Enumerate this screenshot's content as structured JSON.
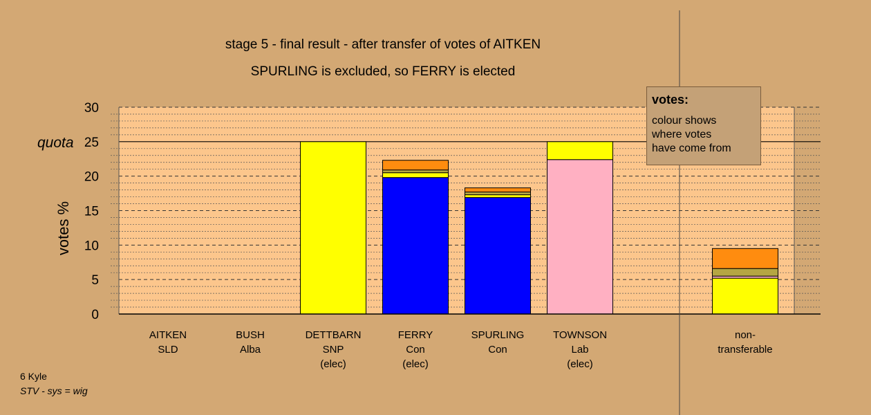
{
  "header": {
    "title_line1": "stage 5 - final result - after transfer of votes of AITKEN",
    "title_line2": "SPURLING is excluded, so FERRY is elected"
  },
  "legend": {
    "title": "votes:",
    "lines": [
      "colour shows",
      "where votes",
      "have come from"
    ]
  },
  "footer": {
    "ward": "6 Kyle",
    "system": "STV - sys = wig"
  },
  "colors": {
    "background": "#d3a874",
    "plot_area": "#fcc68c",
    "snp": "#ffff00",
    "con": "#0000ff",
    "lab": "#ffb0c2",
    "sld": "#ff8c0f",
    "alba": "#b5a642"
  },
  "chart_data": {
    "type": "bar",
    "stacked": true,
    "title": "stage 5 - final result - after transfer of votes of AITKEN",
    "subtitle": "SPURLING is excluded, so FERRY is elected",
    "ylabel": "votes %",
    "ylim": [
      0,
      30
    ],
    "yticks": [
      0,
      5,
      10,
      15,
      20,
      25,
      30
    ],
    "quota": 25,
    "quota_label": "quota",
    "grid": true,
    "categories": [
      {
        "name": "AITKEN",
        "party": "SLD",
        "status": ""
      },
      {
        "name": "BUSH",
        "party": "Alba",
        "status": ""
      },
      {
        "name": "DETTBARN",
        "party": "SNP",
        "status": "(elec)"
      },
      {
        "name": "FERRY",
        "party": "Con",
        "status": "(elec)"
      },
      {
        "name": "SPURLING",
        "party": "Con",
        "status": ""
      },
      {
        "name": "TOWNSON",
        "party": "Lab",
        "status": "(elec)"
      },
      {
        "name": "non-",
        "party": "transferable",
        "status": ""
      }
    ],
    "segments": [
      [],
      [],
      [
        {
          "from": "SNP",
          "value": 25.0
        }
      ],
      [
        {
          "from": "Con",
          "value": 19.8
        },
        {
          "from": "SNP",
          "value": 0.7
        },
        {
          "from": "Alba",
          "value": 0.4
        },
        {
          "from": "SLD",
          "value": 1.4
        }
      ],
      [
        {
          "from": "Con",
          "value": 16.9
        },
        {
          "from": "SNP",
          "value": 0.4
        },
        {
          "from": "Alba",
          "value": 0.4
        },
        {
          "from": "SLD",
          "value": 0.6
        }
      ],
      [
        {
          "from": "Lab",
          "value": 22.4
        },
        {
          "from": "SNP",
          "value": 2.6
        }
      ],
      [
        {
          "from": "SNP",
          "value": 5.2
        },
        {
          "from": "Lab",
          "value": 0.3
        },
        {
          "from": "Alba",
          "value": 1.1
        },
        {
          "from": "SLD",
          "value": 2.9
        }
      ]
    ]
  }
}
